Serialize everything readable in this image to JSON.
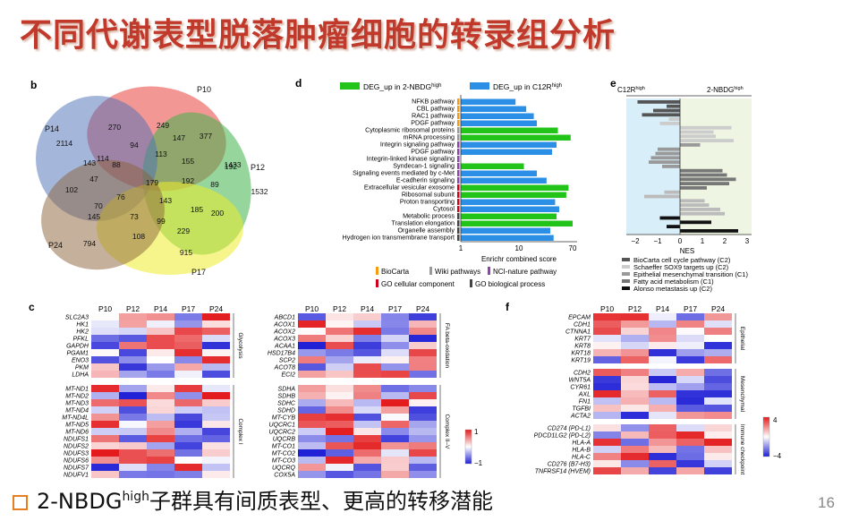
{
  "slide": {
    "title": "不同代谢表型脱落肿瘤细胞的转录组分析",
    "bottom_prefix": "2-NBDG",
    "bottom_sup": "high",
    "bottom_suffix": "子群具有间质表型、更高的转移潜能",
    "page_number": "16"
  },
  "panel_labels": {
    "b": "b",
    "c": "c",
    "d": "d",
    "e": "e",
    "f": "f"
  },
  "venn": {
    "sets": [
      "P10",
      "P12",
      "P14",
      "P17",
      "P24"
    ],
    "counts": [
      "2114",
      "1433",
      "1532",
      "794",
      "915",
      "270",
      "249",
      "377",
      "94",
      "147",
      "114",
      "113",
      "143",
      "155",
      "192",
      "88",
      "47",
      "179",
      "192",
      "89",
      "102",
      "76",
      "143",
      "185",
      "200",
      "70",
      "145",
      "73",
      "99",
      "229",
      "108"
    ]
  },
  "panel_d": {
    "legend": {
      "a_prefix": "DEG_up in 2-NBDG",
      "a_sup": "high",
      "b_prefix": "DEG_up in C12R",
      "b_sup": "high"
    },
    "pathways": [
      {
        "label": "NFKB pathway",
        "green": 0,
        "blue": 8
      },
      {
        "label": "CBL pathway",
        "green": 0,
        "blue": 12
      },
      {
        "label": "RAC1 pathway",
        "green": 6,
        "blue": 16
      },
      {
        "label": "PDGF pathway",
        "green": 0,
        "blue": 18
      },
      {
        "label": "Cytoplasmic ribosomal proteins",
        "green": 40,
        "blue": 0
      },
      {
        "label": "mRNA processing",
        "green": 65,
        "blue": 0
      },
      {
        "label": "Integrin signaling pathway",
        "green": 0,
        "blue": 38
      },
      {
        "label": "PDGF pathway",
        "green": 0,
        "blue": 32
      },
      {
        "label": "Integrin-linked kinase signaling",
        "green": 0,
        "blue": 0
      },
      {
        "label": "Syndecan-1 signaling",
        "green": 11,
        "blue": 0
      },
      {
        "label": "Signaling events mediated by c-Met",
        "green": 0,
        "blue": 18
      },
      {
        "label": "E-cadherin signaling",
        "green": 0,
        "blue": 26
      },
      {
        "label": "Extracellular vesicular exosome",
        "green": 60,
        "blue": 0
      },
      {
        "label": "Ribosomal subunit",
        "green": 55,
        "blue": 0
      },
      {
        "label": "Proton transporting",
        "green": 0,
        "blue": 36
      },
      {
        "label": "Cytosol",
        "green": 0,
        "blue": 42
      },
      {
        "label": "Metabolic process",
        "green": 38,
        "blue": 0
      },
      {
        "label": "Translation elongation",
        "green": 70,
        "blue": 0
      },
      {
        "label": "Organelle assembly",
        "green": 0,
        "blue": 30
      },
      {
        "label": "Hydrogen ion transmembrane transport",
        "green": 0,
        "blue": 34
      }
    ],
    "xticks": [
      "1",
      "10",
      "70"
    ],
    "xlabel": "Enrichr combined score",
    "db_legend": [
      "BioCarta",
      "Wiki pathways",
      "NCI-nature pathway",
      "GO cellular component",
      "GO biological process"
    ]
  },
  "panel_e": {
    "left_prefix": "C12R",
    "left_sup": "high",
    "right_prefix": "2-NBDG",
    "right_sup": "high",
    "xticks": [
      "−2",
      "−1",
      "0",
      "1",
      "2",
      "3"
    ],
    "xlabel": "NES",
    "legend": [
      "BioCarta cell cycle pathway (C2)",
      "Schaeffer SOX9 targets up (C2)",
      "Epithelial mesenchymal transition (C1)",
      "Fatty acid metabolism (C1)",
      "Alonso metastasis up (C2)"
    ]
  },
  "heatmap_c": {
    "cols": [
      "P10",
      "P12",
      "P14",
      "P17",
      "P24"
    ],
    "left_groups": [
      {
        "label": "Glycolysis",
        "genes": [
          "SLC2A3",
          "HK1",
          "HK2",
          "PFKL",
          "GAPDH",
          "PGAM1",
          "ENO3",
          "PKM",
          "LDHA"
        ]
      },
      {
        "label": "Complex I",
        "genes": [
          "MT-ND1",
          "MT-ND2",
          "MT-ND3",
          "MT-ND4",
          "MT-ND4L",
          "MT-ND5",
          "MT-ND6",
          "NDUFS1",
          "NDUFS2",
          "NDUFS3",
          "NDUFS6",
          "NDUFS7",
          "NDUFV1"
        ]
      }
    ],
    "right_groups": [
      {
        "label": "FA beta-oxidation",
        "genes": [
          "ABCD1",
          "ACOX1",
          "ACOX2",
          "ACOX3",
          "ACAA1",
          "HSD17B4",
          "SCP2",
          "ACOT8",
          "ECI2"
        ]
      },
      {
        "label": "Complex II–V",
        "genes": [
          "SDHA",
          "SDHB",
          "SDHC",
          "SDHD",
          "MT-CYB",
          "UQCRC1",
          "UQCRC2",
          "UQCRB",
          "MT-CO1",
          "MT-CO2",
          "MT-CO3",
          "UQCRQ",
          "COX5A"
        ]
      }
    ],
    "scale_max": "1",
    "scale_min": "−1"
  },
  "heatmap_f": {
    "cols": [
      "P10",
      "P12",
      "P14",
      "P17",
      "P24"
    ],
    "groups": [
      {
        "label": "Epithelial",
        "genes": [
          "EPCAM",
          "CDH1",
          "CTNNA1",
          "KRT7",
          "KRT8",
          "KRT18",
          "KRT19"
        ]
      },
      {
        "label": "Mesenchymal",
        "genes": [
          "CDH2",
          "WNT5A",
          "CYR61",
          "AXL",
          "FN1",
          "TGFBI",
          "ACTA2"
        ]
      },
      {
        "label": "Immune checkpoint",
        "genes": [
          "CD274 (PD-L1)",
          "PDCD1LG2 (PD-L2)",
          "HLA-A",
          "HLA-B",
          "HLA-C",
          "CD276 (B7-H3)",
          "TNFRSF14 (HVEM)"
        ]
      }
    ],
    "scale_max": "4",
    "scale_min": "−4"
  },
  "colors": {
    "title": "#c0392b",
    "green": "#22c41a",
    "blue": "#2b8fe6",
    "heat_hi": "#e31a1c",
    "heat_lo": "#1f1fd6"
  }
}
